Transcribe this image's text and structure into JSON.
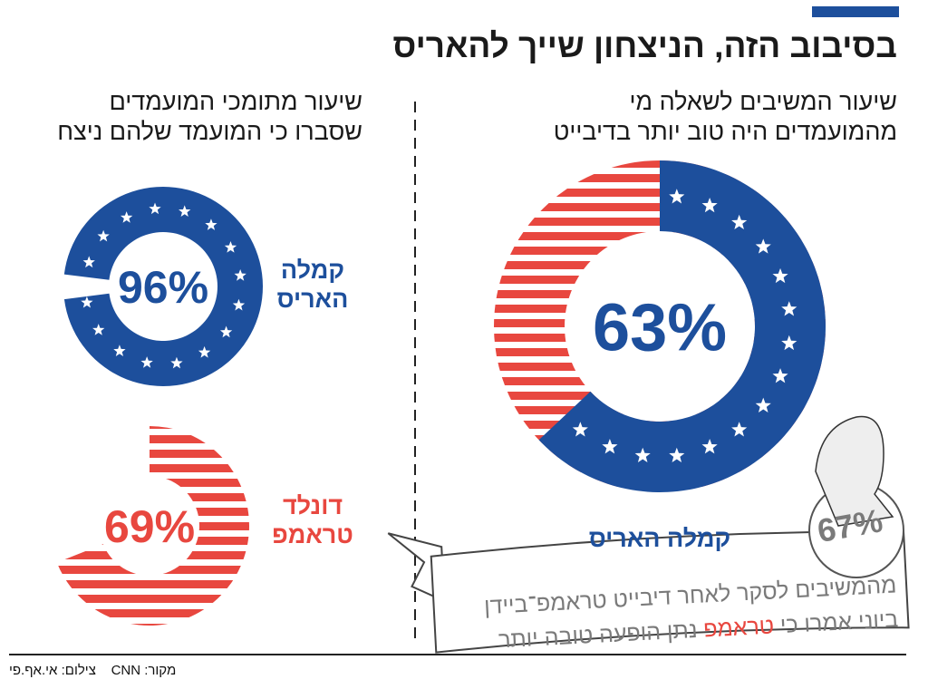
{
  "title": "בסיבוב הזה, הניצחון שייך להאריס",
  "credit": {
    "photo": "צילום: אי.אף.פי",
    "source": "מקור: CNN"
  },
  "note": {
    "value_label": "67%",
    "line1": "מהמשיבים לסקר לאחר דיבייט טראמפ־ביידן",
    "line2": {
      "before": "ביוני אמרו כי",
      "highlight": "טראמפ",
      "after": "נתן הופעה טובה יותר"
    }
  },
  "chart_data": [
    {
      "type": "donut",
      "title_lines": [
        "שיעור המשיבים לשאלה מי",
        "מהמועמדים היה טוב יותר בדיבייט"
      ],
      "categories": [
        [
          "קמלה האריס"
        ]
      ],
      "values": [
        63
      ],
      "value_labels": [
        "63%"
      ],
      "colors": [
        "#1d4f9c"
      ],
      "fills": [
        "stars"
      ],
      "rest_fill": "stripes"
    },
    {
      "type": "donut",
      "title_lines": [
        "שיעור מתומכי המועמדים",
        "שסברו כי המועמד שלהם ניצח"
      ],
      "categories": [
        [
          "קמלה",
          "האריס"
        ],
        [
          "דונלד",
          "טראמפ"
        ]
      ],
      "values": [
        96,
        69
      ],
      "value_labels": [
        "96%",
        "69%"
      ],
      "colors": [
        "#1d4f9c",
        "#e8473f"
      ],
      "fills": [
        "stars",
        "stripes"
      ],
      "rest_fill": "none"
    }
  ]
}
